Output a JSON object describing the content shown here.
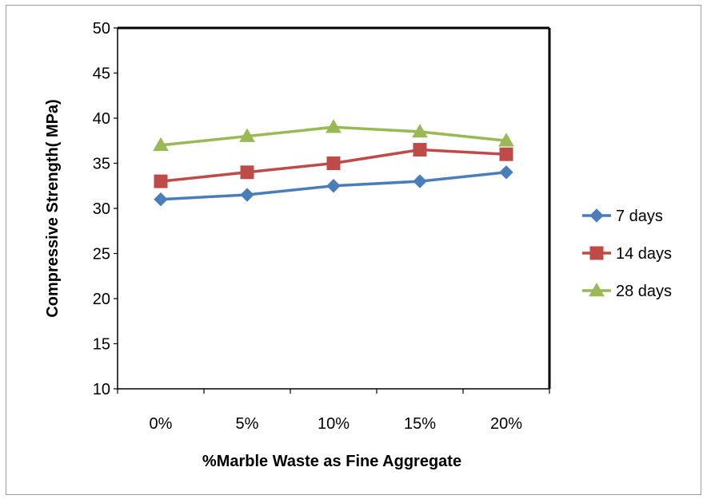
{
  "chart_data": {
    "type": "line",
    "title": "",
    "xlabel": "%Marble Waste as Fine Aggregate",
    "ylabel": "Compressive Strength(  MPa)",
    "categories": [
      "0%",
      "5%",
      "10%",
      "15%",
      "20%"
    ],
    "ylim": [
      10,
      50
    ],
    "yticks": [
      10,
      15,
      20,
      25,
      30,
      35,
      40,
      45,
      50
    ],
    "grid": false,
    "legend_position": "right",
    "series": [
      {
        "name": "7 days",
        "values": [
          31,
          31.5,
          32.5,
          33,
          34
        ],
        "color": "#4a7ebb",
        "marker": "diamond"
      },
      {
        "name": "14 days",
        "values": [
          33,
          34,
          35,
          36.5,
          36
        ],
        "color": "#be4b48",
        "marker": "square"
      },
      {
        "name": "28 days",
        "values": [
          37,
          38,
          39,
          38.5,
          37.5
        ],
        "color": "#98b954",
        "marker": "triangle"
      }
    ]
  }
}
